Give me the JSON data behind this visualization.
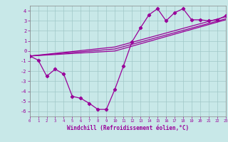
{
  "xlabel": "Windchill (Refroidissement éolien,°C)",
  "bg_color": "#c8e8e8",
  "line_color": "#990099",
  "grid_color": "#a0c8c8",
  "xlim": [
    0,
    23
  ],
  "ylim": [
    -6.5,
    4.5
  ],
  "xticks": [
    0,
    1,
    2,
    3,
    4,
    5,
    6,
    7,
    8,
    9,
    10,
    11,
    12,
    13,
    14,
    15,
    16,
    17,
    18,
    19,
    20,
    21,
    22,
    23
  ],
  "yticks": [
    -6,
    -5,
    -4,
    -3,
    -2,
    -1,
    0,
    1,
    2,
    3,
    4
  ],
  "line1": [
    [
      0,
      -0.5
    ],
    [
      1,
      -0.9
    ],
    [
      2,
      -2.5
    ],
    [
      3,
      -1.8
    ],
    [
      4,
      -2.3
    ],
    [
      5,
      -4.5
    ],
    [
      6,
      -4.7
    ],
    [
      7,
      -5.2
    ],
    [
      8,
      -5.8
    ],
    [
      9,
      -5.8
    ],
    [
      10,
      -3.8
    ],
    [
      11,
      -1.5
    ],
    [
      12,
      0.9
    ],
    [
      13,
      2.3
    ],
    [
      14,
      3.6
    ],
    [
      15,
      4.2
    ],
    [
      16,
      3.0
    ],
    [
      17,
      3.8
    ],
    [
      18,
      4.2
    ],
    [
      19,
      3.1
    ],
    [
      20,
      3.1
    ],
    [
      21,
      3.0
    ],
    [
      22,
      3.1
    ],
    [
      23,
      3.5
    ]
  ],
  "line2": [
    [
      0,
      -0.5
    ],
    [
      10,
      0.0
    ],
    [
      23,
      3.1
    ]
  ],
  "line3": [
    [
      0,
      -0.5
    ],
    [
      10,
      0.2
    ],
    [
      23,
      3.2
    ]
  ],
  "line4": [
    [
      0,
      -0.5
    ],
    [
      10,
      0.4
    ],
    [
      23,
      3.4
    ]
  ]
}
